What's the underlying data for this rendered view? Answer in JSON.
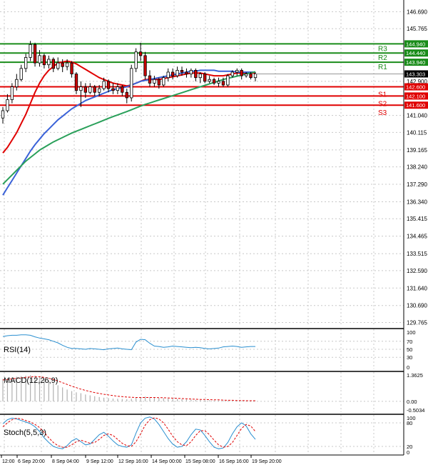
{
  "colors": {
    "background": "#ffffff",
    "grid": "#c8c8c8",
    "axis": "#000000",
    "resistance": "#1a8c1a",
    "support": "#e00000",
    "ma_fast": "#e00000",
    "ma_mid": "#3a62d8",
    "ma_slow": "#2aa05a",
    "candle_up": "#1a8c1a",
    "candle_down": "#cc0000",
    "oscillator_main": "#2a8fd0",
    "oscillator_signal": "#e00000",
    "macd_hist": "#b0b0b0",
    "price_tag_bg": "#000000",
    "price_tag_text": "#ffffff"
  },
  "chart_data": [
    {
      "type": "candlestick",
      "name": "price",
      "y_ticks": [
        "146.690",
        "145.765",
        "144.940",
        "144.440",
        "143.940",
        "143.303",
        "142.900",
        "142.600",
        "142.100",
        "141.600",
        "141.040",
        "140.115",
        "139.165",
        "138.240",
        "137.290",
        "136.340",
        "135.415",
        "134.465",
        "133.515",
        "132.590",
        "131.640",
        "130.690",
        "129.765"
      ],
      "ylim": [
        129.55,
        147.25
      ],
      "grid": true,
      "current_price": "143.303",
      "x_labels": [
        "12:00",
        "6 Sep 20:00",
        "8 Sep 04:00",
        "9 Sep 12:00",
        "12 Sep 16:00",
        "14 Sep 00:00",
        "15 Sep 08:00",
        "16 Sep 16:00",
        "19 Sep 20:00"
      ],
      "levels": [
        {
          "label": "R3",
          "value": 144.94,
          "price_text": "144.940",
          "kind": "resistance"
        },
        {
          "label": "R2",
          "value": 144.44,
          "price_text": "144.440",
          "kind": "resistance"
        },
        {
          "label": "R1",
          "value": 143.94,
          "price_text": "143.940",
          "kind": "resistance"
        },
        {
          "label": "S1",
          "value": 142.6,
          "price_text": "142.600",
          "kind": "support"
        },
        {
          "label": "S2",
          "value": 142.1,
          "price_text": "142.100",
          "kind": "support"
        },
        {
          "label": "S3",
          "value": 141.6,
          "price_text": "141.600",
          "kind": "support"
        }
      ],
      "candles": [
        {
          "o": 140.9,
          "h": 141.5,
          "l": 140.6,
          "c": 141.3
        },
        {
          "o": 141.3,
          "h": 142.2,
          "l": 141.2,
          "c": 141.9
        },
        {
          "o": 141.9,
          "h": 142.8,
          "l": 141.7,
          "c": 142.6
        },
        {
          "o": 142.6,
          "h": 143.3,
          "l": 142.4,
          "c": 143.0
        },
        {
          "o": 143.0,
          "h": 143.8,
          "l": 142.9,
          "c": 143.6
        },
        {
          "o": 143.6,
          "h": 144.4,
          "l": 143.4,
          "c": 144.2
        },
        {
          "o": 144.2,
          "h": 145.1,
          "l": 144.0,
          "c": 144.9
        },
        {
          "o": 144.9,
          "h": 145.0,
          "l": 143.7,
          "c": 143.9
        },
        {
          "o": 143.9,
          "h": 144.6,
          "l": 143.7,
          "c": 144.3
        },
        {
          "o": 144.3,
          "h": 144.4,
          "l": 143.6,
          "c": 143.8
        },
        {
          "o": 143.8,
          "h": 144.3,
          "l": 143.6,
          "c": 144.1
        },
        {
          "o": 144.1,
          "h": 144.2,
          "l": 143.4,
          "c": 143.6
        },
        {
          "o": 143.6,
          "h": 144.2,
          "l": 143.5,
          "c": 143.9
        },
        {
          "o": 143.9,
          "h": 144.1,
          "l": 143.4,
          "c": 143.7
        },
        {
          "o": 143.7,
          "h": 144.1,
          "l": 143.5,
          "c": 143.9
        },
        {
          "o": 143.9,
          "h": 144.0,
          "l": 143.1,
          "c": 143.3
        },
        {
          "o": 143.3,
          "h": 143.4,
          "l": 142.2,
          "c": 142.4
        },
        {
          "o": 142.4,
          "h": 142.9,
          "l": 141.5,
          "c": 142.6
        },
        {
          "o": 142.6,
          "h": 142.8,
          "l": 142.0,
          "c": 142.3
        },
        {
          "o": 142.3,
          "h": 142.8,
          "l": 142.2,
          "c": 142.6
        },
        {
          "o": 142.6,
          "h": 142.7,
          "l": 142.1,
          "c": 142.3
        },
        {
          "o": 142.3,
          "h": 142.7,
          "l": 142.1,
          "c": 142.5
        },
        {
          "o": 142.5,
          "h": 143.1,
          "l": 142.4,
          "c": 142.9
        },
        {
          "o": 142.9,
          "h": 143.0,
          "l": 142.3,
          "c": 142.5
        },
        {
          "o": 142.5,
          "h": 142.8,
          "l": 142.2,
          "c": 142.4
        },
        {
          "o": 142.4,
          "h": 142.8,
          "l": 142.2,
          "c": 142.6
        },
        {
          "o": 142.6,
          "h": 142.7,
          "l": 142.1,
          "c": 142.3
        },
        {
          "o": 142.3,
          "h": 142.5,
          "l": 141.7,
          "c": 142.0
        },
        {
          "o": 142.0,
          "h": 143.8,
          "l": 141.8,
          "c": 143.6
        },
        {
          "o": 143.6,
          "h": 144.7,
          "l": 143.4,
          "c": 144.5
        },
        {
          "o": 144.5,
          "h": 145.0,
          "l": 144.0,
          "c": 144.3
        },
        {
          "o": 144.3,
          "h": 144.5,
          "l": 143.0,
          "c": 143.2
        },
        {
          "o": 143.2,
          "h": 143.5,
          "l": 142.6,
          "c": 142.8
        },
        {
          "o": 142.8,
          "h": 143.2,
          "l": 142.6,
          "c": 143.0
        },
        {
          "o": 143.0,
          "h": 143.1,
          "l": 142.5,
          "c": 142.7
        },
        {
          "o": 142.7,
          "h": 143.2,
          "l": 142.6,
          "c": 143.1
        },
        {
          "o": 143.1,
          "h": 143.6,
          "l": 142.9,
          "c": 143.4
        },
        {
          "o": 143.4,
          "h": 143.6,
          "l": 143.0,
          "c": 143.2
        },
        {
          "o": 143.2,
          "h": 143.7,
          "l": 143.1,
          "c": 143.5
        },
        {
          "o": 143.5,
          "h": 143.7,
          "l": 143.2,
          "c": 143.4
        },
        {
          "o": 143.4,
          "h": 143.6,
          "l": 143.1,
          "c": 143.3
        },
        {
          "o": 143.3,
          "h": 143.6,
          "l": 143.1,
          "c": 143.5
        },
        {
          "o": 143.5,
          "h": 143.6,
          "l": 142.9,
          "c": 143.1
        },
        {
          "o": 143.1,
          "h": 143.4,
          "l": 142.8,
          "c": 143.3
        },
        {
          "o": 143.3,
          "h": 143.4,
          "l": 142.8,
          "c": 142.9
        },
        {
          "o": 142.9,
          "h": 143.2,
          "l": 142.8,
          "c": 143.0
        },
        {
          "o": 143.0,
          "h": 143.1,
          "l": 142.7,
          "c": 142.8
        },
        {
          "o": 142.8,
          "h": 143.1,
          "l": 142.6,
          "c": 142.9
        },
        {
          "o": 142.9,
          "h": 143.1,
          "l": 142.6,
          "c": 142.7
        },
        {
          "o": 142.7,
          "h": 143.3,
          "l": 142.6,
          "c": 143.2
        },
        {
          "o": 143.2,
          "h": 143.5,
          "l": 143.1,
          "c": 143.4
        },
        {
          "o": 143.4,
          "h": 143.6,
          "l": 143.2,
          "c": 143.5
        },
        {
          "o": 143.5,
          "h": 143.6,
          "l": 143.0,
          "c": 143.2
        },
        {
          "o": 143.2,
          "h": 143.4,
          "l": 143.1,
          "c": 143.3
        },
        {
          "o": 143.3,
          "h": 143.4,
          "l": 143.0,
          "c": 143.1
        },
        {
          "o": 143.1,
          "h": 143.4,
          "l": 142.9,
          "c": 143.3
        }
      ],
      "moving_averages": [
        {
          "color_key": "ma_fast",
          "values": [
            139.0,
            139.3,
            139.7,
            140.1,
            140.6,
            141.1,
            141.7,
            142.3,
            142.8,
            143.2,
            143.5,
            143.7,
            143.9,
            143.95,
            144.0,
            143.95,
            143.85,
            143.7,
            143.55,
            143.4,
            143.25,
            143.1,
            143.0,
            142.9,
            142.8,
            142.75,
            142.7,
            142.65,
            142.7,
            142.8,
            142.9,
            143.0,
            143.0,
            143.0,
            143.0,
            143.05,
            143.1,
            143.15,
            143.2,
            143.25,
            143.3,
            143.35,
            143.35,
            143.35,
            143.3,
            143.25,
            143.2,
            143.2,
            143.2,
            143.25,
            143.3,
            143.35,
            143.35,
            143.35,
            143.35,
            143.35
          ]
        },
        {
          "color_key": "ma_mid",
          "values": [
            136.7,
            137.1,
            137.5,
            137.9,
            138.3,
            138.7,
            139.1,
            139.45,
            139.75,
            140.05,
            140.3,
            140.55,
            140.8,
            141.0,
            141.2,
            141.4,
            141.55,
            141.7,
            141.85,
            141.95,
            142.05,
            142.15,
            142.25,
            142.35,
            142.45,
            142.5,
            142.55,
            142.6,
            142.7,
            142.8,
            142.9,
            142.95,
            143.0,
            143.05,
            143.1,
            143.15,
            143.2,
            143.25,
            143.3,
            143.35,
            143.4,
            143.45,
            143.45,
            143.5,
            143.5,
            143.5,
            143.5,
            143.45,
            143.45,
            143.45,
            143.45,
            143.4,
            143.4,
            143.4,
            143.4,
            143.4
          ]
        },
        {
          "color_key": "ma_slow",
          "values": [
            137.3,
            137.55,
            137.8,
            138.05,
            138.3,
            138.55,
            138.75,
            138.95,
            139.15,
            139.3,
            139.45,
            139.6,
            139.72,
            139.84,
            139.96,
            140.08,
            140.18,
            140.28,
            140.38,
            140.48,
            140.58,
            140.68,
            140.78,
            140.88,
            140.98,
            141.07,
            141.16,
            141.25,
            141.35,
            141.45,
            141.55,
            141.64,
            141.72,
            141.8,
            141.88,
            141.96,
            142.04,
            142.12,
            142.2,
            142.28,
            142.36,
            142.44,
            142.52,
            142.6,
            142.68,
            142.76,
            142.84,
            142.92,
            143.0,
            143.06,
            143.12,
            143.18,
            143.24,
            143.3,
            143.36,
            143.42
          ]
        }
      ]
    },
    {
      "type": "line",
      "name": "rsi",
      "title": "RSI(14)",
      "y_ticks": [
        "100",
        "70",
        "50",
        "30",
        "0"
      ],
      "ylim": [
        0,
        100
      ],
      "series": [
        {
          "color_key": "oscillator_main",
          "values": [
            82,
            84,
            85,
            85,
            86,
            86,
            85,
            81,
            78,
            76,
            74,
            70,
            66,
            60,
            55,
            52,
            52,
            51,
            50,
            52,
            51,
            50,
            49,
            51,
            52,
            53,
            51,
            50,
            49,
            68,
            75,
            74,
            65,
            58,
            57,
            55,
            56,
            58,
            57,
            56,
            55,
            54,
            55,
            54,
            52,
            51,
            52,
            53,
            56,
            57,
            58,
            57,
            55,
            56,
            57,
            57
          ]
        }
      ]
    },
    {
      "type": "bar",
      "name": "macd",
      "title": "MACD(12,26,9)",
      "y_ticks": [
        "1.3625",
        "0.00",
        "-0.5034"
      ],
      "ylim": [
        -0.5034,
        1.3625
      ],
      "values": [
        1.05,
        1.1,
        1.12,
        1.15,
        1.18,
        1.2,
        1.22,
        1.2,
        1.15,
        1.05,
        0.95,
        0.85,
        0.75,
        0.65,
        0.55,
        0.48,
        0.42,
        0.38,
        0.32,
        0.28,
        0.24,
        0.2,
        0.17,
        0.15,
        0.13,
        0.12,
        0.11,
        0.1,
        0.12,
        0.18,
        0.2,
        0.22,
        0.2,
        0.18,
        0.16,
        0.15,
        0.13,
        0.12,
        0.11,
        0.1,
        0.09,
        0.08,
        0.07,
        0.06,
        0.05,
        0.05,
        0.04,
        0.04,
        0.03,
        0.03,
        0.02,
        0.02,
        0.02,
        0.02,
        0.01,
        0.01
      ],
      "signal": [
        1.0,
        1.02,
        1.05,
        1.08,
        1.1,
        1.12,
        1.14,
        1.15,
        1.15,
        1.12,
        1.08,
        1.02,
        0.95,
        0.87,
        0.79,
        0.71,
        0.64,
        0.57,
        0.51,
        0.46,
        0.41,
        0.37,
        0.33,
        0.3,
        0.27,
        0.24,
        0.22,
        0.2,
        0.19,
        0.18,
        0.18,
        0.18,
        0.18,
        0.18,
        0.17,
        0.17,
        0.16,
        0.15,
        0.14,
        0.13,
        0.12,
        0.11,
        0.1,
        0.09,
        0.09,
        0.08,
        0.07,
        0.07,
        0.06,
        0.05,
        0.05,
        0.04,
        0.04,
        0.03,
        0.03,
        0.03
      ]
    },
    {
      "type": "line",
      "name": "stochastic",
      "title": "Stoch(5,5,3)",
      "y_ticks": [
        "100",
        "80",
        "20",
        "0"
      ],
      "ylim": [
        0,
        100
      ],
      "series": [
        {
          "color_key": "oscillator_main",
          "values": [
            78,
            88,
            92,
            90,
            86,
            82,
            78,
            70,
            58,
            42,
            30,
            20,
            16,
            14,
            22,
            34,
            40,
            32,
            24,
            26,
            38,
            50,
            56,
            46,
            34,
            24,
            20,
            18,
            24,
            54,
            80,
            92,
            95,
            90,
            76,
            58,
            40,
            26,
            18,
            20,
            32,
            50,
            64,
            62,
            48,
            32,
            18,
            14,
            16,
            30,
            52,
            70,
            80,
            72,
            52,
            38
          ]
        },
        {
          "color_key": "oscillator_signal",
          "values": [
            70,
            80,
            88,
            92,
            90,
            86,
            82,
            76,
            68,
            56,
            42,
            30,
            22,
            18,
            18,
            24,
            32,
            36,
            32,
            28,
            30,
            38,
            48,
            52,
            48,
            38,
            28,
            22,
            20,
            32,
            52,
            74,
            88,
            93,
            90,
            80,
            64,
            46,
            32,
            24,
            22,
            32,
            48,
            60,
            60,
            50,
            36,
            24,
            18,
            20,
            30,
            48,
            66,
            76,
            72,
            58
          ]
        }
      ]
    }
  ]
}
